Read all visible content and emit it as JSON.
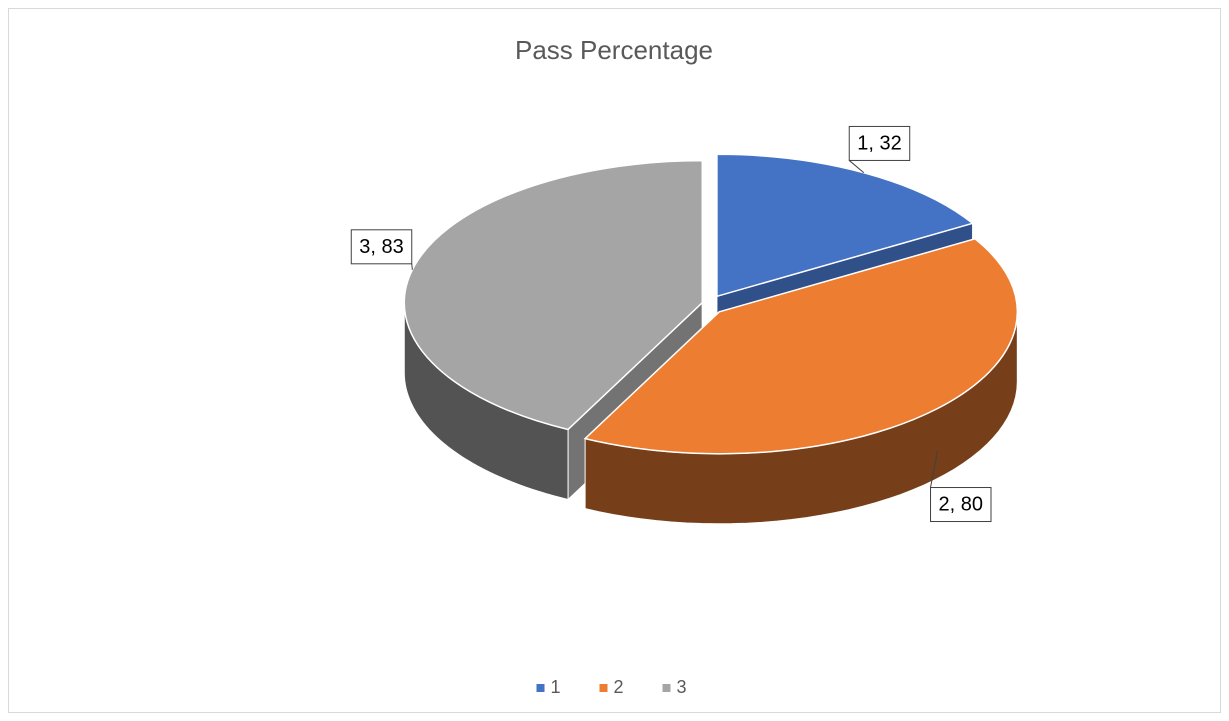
{
  "chart_data": {
    "type": "pie",
    "title": "Pass Percentage",
    "categories": [
      "1",
      "2",
      "3"
    ],
    "values": [
      32,
      80,
      83
    ],
    "value_labels": [
      "1, 32",
      "2, 80",
      "3, 83"
    ],
    "colors": [
      "#4472c4",
      "#ed7d31",
      "#a5a5a5"
    ],
    "legend": "bottom",
    "three_d": true,
    "exploded": true
  }
}
